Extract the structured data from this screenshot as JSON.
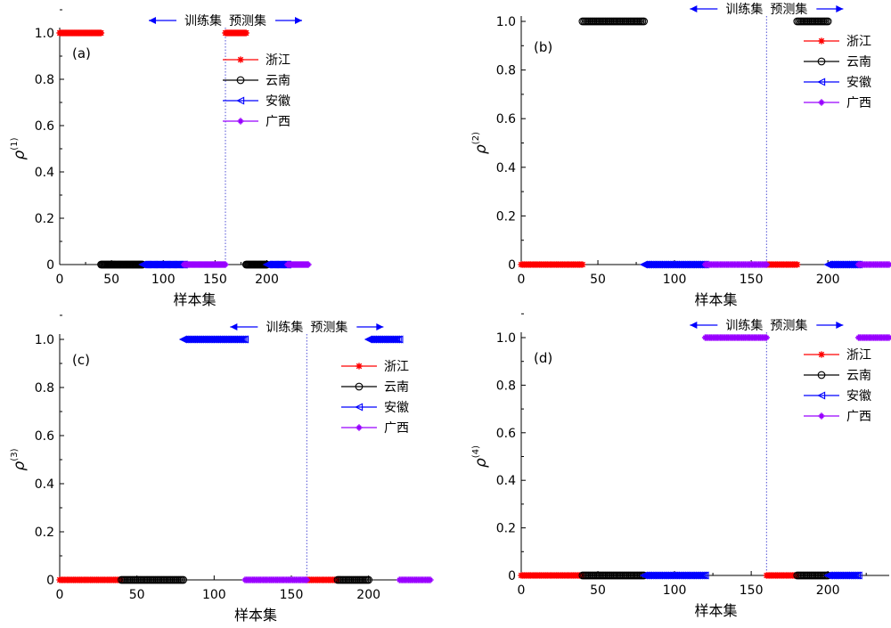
{
  "chart_data": [
    {
      "panel_label": "(a)",
      "type": "scatter",
      "ylabel_base": "ρ",
      "ylabel_sup": "(1)",
      "xlabel": "样本集",
      "xlim": [
        0,
        240
      ],
      "ylim": [
        0,
        1.0
      ],
      "xticks": [
        "0",
        "50",
        "100",
        "150",
        "200"
      ],
      "yticks": [
        "0",
        "0.2",
        "0.4",
        "0.6",
        "0.8",
        "1.0"
      ],
      "divider_x": 160,
      "annotation_left": "训练集",
      "annotation_right": "预测集",
      "legend_position": "top-right",
      "series": [
        {
          "name": "浙江",
          "color": "#ff0000",
          "marker": "star",
          "segments": [
            {
              "x_from": 0,
              "x_to": 40,
              "y": 1
            },
            {
              "x_from": 160,
              "x_to": 180,
              "y": 1
            }
          ]
        },
        {
          "name": "云南",
          "color": "#000000",
          "marker": "circle",
          "segments": [
            {
              "x_from": 40,
              "x_to": 80,
              "y": 0
            },
            {
              "x_from": 180,
              "x_to": 200,
              "y": 0
            }
          ]
        },
        {
          "name": "安徽",
          "color": "#0000ff",
          "marker": "triangle-left",
          "segments": [
            {
              "x_from": 80,
              "x_to": 120,
              "y": 0
            },
            {
              "x_from": 200,
              "x_to": 220,
              "y": 0
            }
          ]
        },
        {
          "name": "广西",
          "color": "#9900ff",
          "marker": "cross",
          "segments": [
            {
              "x_from": 120,
              "x_to": 160,
              "y": 0
            },
            {
              "x_from": 220,
              "x_to": 240,
              "y": 0
            }
          ]
        }
      ]
    },
    {
      "panel_label": "(b)",
      "type": "scatter",
      "ylabel_base": "ρ",
      "ylabel_sup": "(2)",
      "xlabel": "样本集",
      "xlim": [
        0,
        240
      ],
      "ylim": [
        0,
        1.0
      ],
      "xticks": [
        "0",
        "50",
        "100",
        "150",
        "200"
      ],
      "yticks": [
        "0",
        "0.2",
        "0.4",
        "0.6",
        "0.8",
        "1.0"
      ],
      "divider_x": 160,
      "annotation_left": "训练集",
      "annotation_right": "预测集",
      "legend_position": "top-right",
      "series": [
        {
          "name": "浙江",
          "color": "#ff0000",
          "marker": "star",
          "segments": [
            {
              "x_from": 0,
              "x_to": 40,
              "y": 0
            },
            {
              "x_from": 160,
              "x_to": 180,
              "y": 0
            }
          ]
        },
        {
          "name": "云南",
          "color": "#000000",
          "marker": "circle",
          "segments": [
            {
              "x_from": 40,
              "x_to": 80,
              "y": 1
            },
            {
              "x_from": 180,
              "x_to": 200,
              "y": 1
            }
          ]
        },
        {
          "name": "安徽",
          "color": "#0000ff",
          "marker": "triangle-left",
          "segments": [
            {
              "x_from": 80,
              "x_to": 120,
              "y": 0
            },
            {
              "x_from": 200,
              "x_to": 220,
              "y": 0
            }
          ]
        },
        {
          "name": "广西",
          "color": "#9900ff",
          "marker": "cross",
          "segments": [
            {
              "x_from": 120,
              "x_to": 160,
              "y": 0
            },
            {
              "x_from": 220,
              "x_to": 240,
              "y": 0
            }
          ]
        }
      ]
    },
    {
      "panel_label": "(c)",
      "type": "scatter",
      "ylabel_base": "ρ",
      "ylabel_sup": "(3)",
      "xlabel": "样本集",
      "xlim": [
        0,
        240
      ],
      "ylim": [
        0,
        1.0
      ],
      "xticks": [
        "0",
        "50",
        "100",
        "150",
        "200"
      ],
      "yticks": [
        "0",
        "0.2",
        "0.4",
        "0.6",
        "0.8",
        "1.0"
      ],
      "divider_x": 160,
      "annotation_left": "训练集",
      "annotation_right": "预测集",
      "legend_position": "top-right",
      "series": [
        {
          "name": "浙江",
          "color": "#ff0000",
          "marker": "star",
          "segments": [
            {
              "x_from": 0,
              "x_to": 40,
              "y": 0
            },
            {
              "x_from": 160,
              "x_to": 180,
              "y": 0
            }
          ]
        },
        {
          "name": "云南",
          "color": "#000000",
          "marker": "circle",
          "segments": [
            {
              "x_from": 40,
              "x_to": 80,
              "y": 0
            },
            {
              "x_from": 180,
              "x_to": 200,
              "y": 0
            }
          ]
        },
        {
          "name": "安徽",
          "color": "#0000ff",
          "marker": "triangle-left",
          "segments": [
            {
              "x_from": 80,
              "x_to": 120,
              "y": 1
            },
            {
              "x_from": 200,
              "x_to": 220,
              "y": 1
            }
          ]
        },
        {
          "name": "广西",
          "color": "#9900ff",
          "marker": "cross",
          "segments": [
            {
              "x_from": 120,
              "x_to": 160,
              "y": 0
            },
            {
              "x_from": 220,
              "x_to": 240,
              "y": 0
            }
          ]
        }
      ]
    },
    {
      "panel_label": "(d)",
      "type": "scatter",
      "ylabel_base": "ρ",
      "ylabel_sup": "(4)",
      "xlabel": "样本集",
      "xlim": [
        0,
        240
      ],
      "ylim": [
        0,
        1.0
      ],
      "xticks": [
        "0",
        "50",
        "100",
        "150",
        "200"
      ],
      "yticks": [
        "0",
        "0.2",
        "0.4",
        "0.6",
        "0.8",
        "1.0"
      ],
      "divider_x": 160,
      "annotation_left": "训练集",
      "annotation_right": "预测集",
      "legend_position": "top-right",
      "series": [
        {
          "name": "浙江",
          "color": "#ff0000",
          "marker": "star",
          "segments": [
            {
              "x_from": 0,
              "x_to": 40,
              "y": 0
            },
            {
              "x_from": 160,
              "x_to": 180,
              "y": 0
            }
          ]
        },
        {
          "name": "云南",
          "color": "#000000",
          "marker": "circle",
          "segments": [
            {
              "x_from": 40,
              "x_to": 80,
              "y": 0
            },
            {
              "x_from": 180,
              "x_to": 200,
              "y": 0
            }
          ]
        },
        {
          "name": "安徽",
          "color": "#0000ff",
          "marker": "triangle-left",
          "segments": [
            {
              "x_from": 80,
              "x_to": 120,
              "y": 0
            },
            {
              "x_from": 200,
              "x_to": 220,
              "y": 0
            }
          ]
        },
        {
          "name": "广西",
          "color": "#9900ff",
          "marker": "cross",
          "segments": [
            {
              "x_from": 120,
              "x_to": 160,
              "y": 1
            },
            {
              "x_from": 220,
              "x_to": 240,
              "y": 1
            }
          ]
        }
      ]
    }
  ]
}
